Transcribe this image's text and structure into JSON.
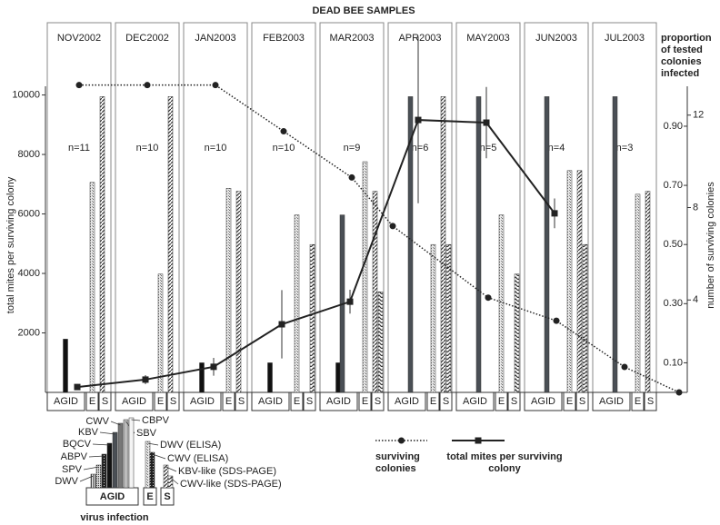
{
  "chart_data": {
    "type": "combo",
    "title": "DEAD BEE SAMPLES",
    "categories": [
      "NOV2002",
      "DEC2002",
      "JAN2003",
      "FEB2003",
      "MAR2003",
      "APR2003",
      "MAY2003",
      "JUN2003",
      "JUL2003"
    ],
    "panel_labels": [
      "n=11",
      "n=10",
      "n=10",
      "n=10",
      "n=9",
      "n=6",
      "n=5",
      "n=4",
      "n=3"
    ],
    "sublabels": [
      "AGID",
      "E",
      "S"
    ],
    "ylabel": "total mites per surviving colony",
    "ylim": [
      0,
      12430
    ],
    "yticks": [
      2000,
      4000,
      6000,
      8000,
      10000
    ],
    "y2label": "proportion of tested colonies infected",
    "y2lim": [
      0,
      1.25
    ],
    "y2ticks": [
      {
        "value": 0.1,
        "label": "0.10"
      },
      {
        "value": 0.3,
        "label": "0.30"
      },
      {
        "value": 0.5,
        "label": "0.50"
      },
      {
        "value": 0.7,
        "label": "0.70"
      },
      {
        "value": 0.9,
        "label": "0.90"
      }
    ],
    "y3label": "number of surviving colonies",
    "y3lim": [
      0,
      16
    ],
    "y3ticks": [
      4,
      8,
      12
    ],
    "legend_title": "virus infection",
    "series": [
      {
        "name": "DWV",
        "group": 0,
        "axis": "y2",
        "color": "#555",
        "pattern": "vlines",
        "values": [
          null,
          null,
          null,
          null,
          null,
          null,
          null,
          null,
          null
        ]
      },
      {
        "name": "SPV",
        "group": 0,
        "axis": "y2",
        "color": "#666",
        "pattern": "dots",
        "values": [
          null,
          null,
          null,
          null,
          null,
          null,
          null,
          null,
          null
        ]
      },
      {
        "name": "ABPV",
        "group": 0,
        "axis": "y2",
        "color": "#333",
        "pattern": "dense",
        "values": [
          null,
          null,
          null,
          null,
          null,
          null,
          null,
          null,
          null
        ]
      },
      {
        "name": "BQCV",
        "group": 0,
        "axis": "y2",
        "color": "#111",
        "values": [
          0.18,
          null,
          0.1,
          0.1,
          0.1,
          null,
          null,
          null,
          null
        ]
      },
      {
        "name": "KBV",
        "group": 0,
        "axis": "y2",
        "color": "#4a4f55",
        "values": [
          null,
          null,
          null,
          null,
          0.6,
          1.0,
          1.0,
          1.0,
          1.0
        ]
      },
      {
        "name": "CWV",
        "group": 0,
        "axis": "y2",
        "color": "#777",
        "values": [
          null,
          null,
          null,
          null,
          null,
          null,
          null,
          null,
          null
        ]
      },
      {
        "name": "SBV",
        "group": 0,
        "axis": "y2",
        "color": "#bbb",
        "values": [
          null,
          null,
          null,
          null,
          null,
          null,
          null,
          null,
          null
        ]
      },
      {
        "name": "CBPV",
        "group": 0,
        "axis": "y2",
        "color": "#f4f4f4",
        "values": [
          null,
          null,
          null,
          null,
          null,
          null,
          null,
          null,
          null
        ]
      },
      {
        "name": "DWV (ELISA)",
        "group": 1,
        "axis": "y2",
        "color": "#999",
        "pattern": "speckle",
        "values": [
          0.71,
          0.4,
          0.69,
          0.6,
          0.78,
          0.5,
          0.6,
          0.75,
          0.67
        ]
      },
      {
        "name": "CWV (ELISA)",
        "group": 1,
        "axis": "y2",
        "color": "#222",
        "pattern": "dense",
        "values": [
          null,
          null,
          null,
          null,
          null,
          null,
          null,
          null,
          null
        ]
      },
      {
        "name": "KBV-like (SDS-PAGE)",
        "group": 2,
        "axis": "y2",
        "color": "#444",
        "pattern": "diag",
        "values": [
          1.0,
          1.0,
          0.68,
          null,
          0.68,
          1.0,
          null,
          0.75,
          0.68
        ]
      },
      {
        "name": "CWV-like (SDS-PAGE)",
        "group": 2,
        "axis": "y2",
        "color": "#444",
        "pattern": "chevron",
        "values": [
          null,
          null,
          null,
          0.5,
          0.34,
          0.5,
          0.4,
          0.5,
          null
        ]
      }
    ],
    "lines": [
      {
        "name": "surviving colonies",
        "axis": "y3",
        "style": "dotted",
        "marker": "circle",
        "color": "#222",
        "x": [
          0,
          1,
          2,
          3,
          4,
          4.6,
          6,
          7,
          8,
          8.8
        ],
        "values": [
          13.3,
          13.3,
          13.3,
          11.3,
          9.3,
          7.2,
          4.1,
          3.1,
          1.1,
          0
        ]
      },
      {
        "name": "total mites per surviving colony",
        "axis": "y",
        "style": "solid",
        "marker": "square",
        "color": "#222",
        "values": [
          180,
          430,
          860,
          2290,
          3050,
          9160,
          9070,
          6020,
          null
        ],
        "errors": [
          100,
          150,
          300,
          1150,
          400,
          2800,
          1200,
          500,
          null
        ]
      }
    ]
  }
}
